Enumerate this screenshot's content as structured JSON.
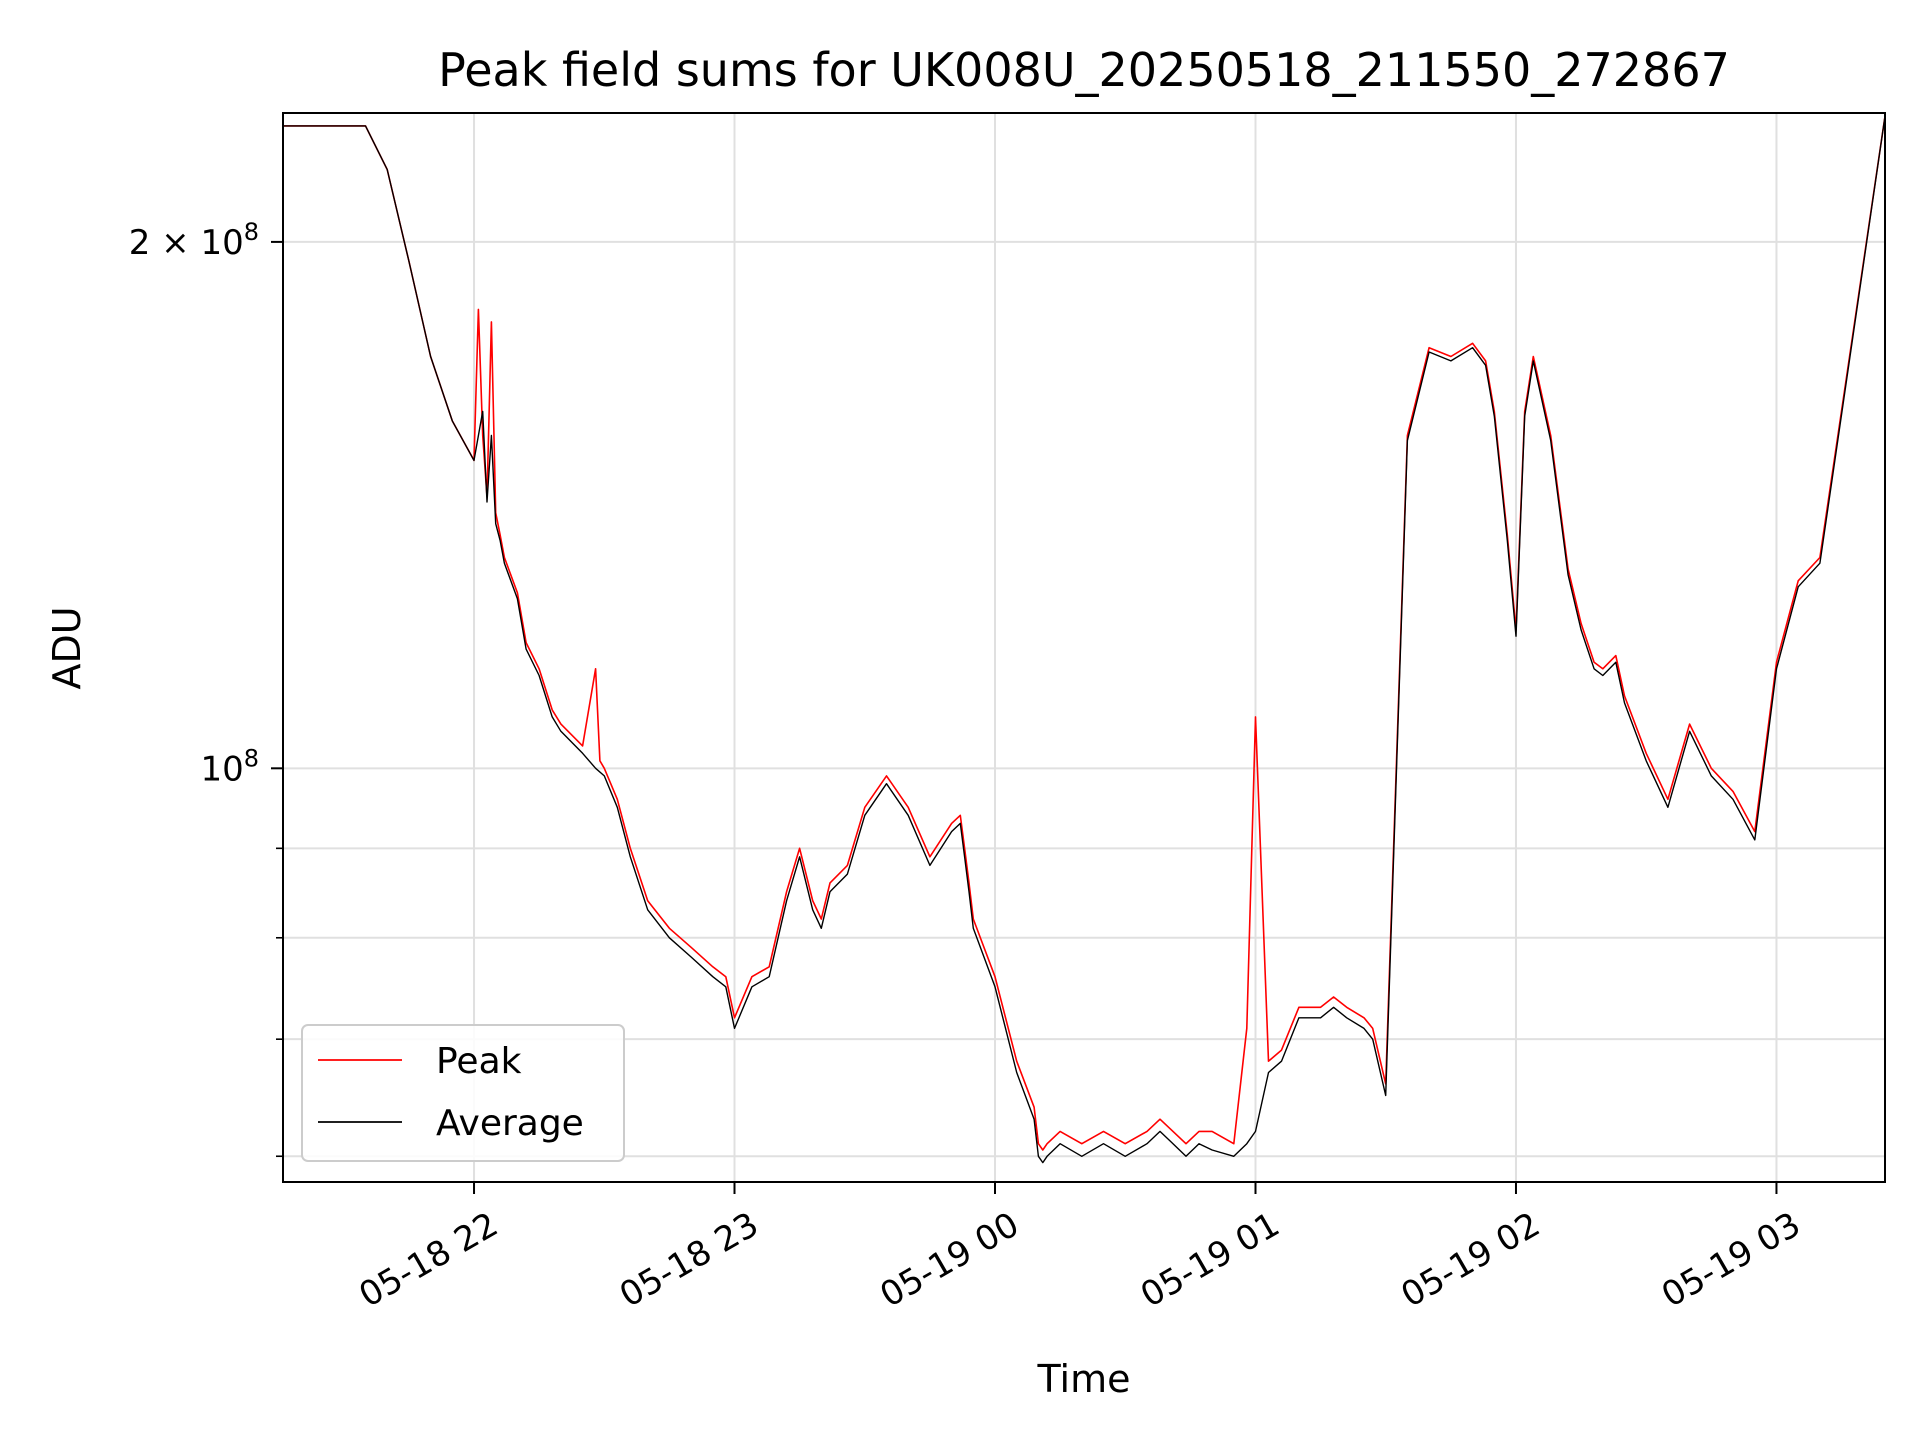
{
  "chart_data": {
    "type": "line",
    "title": "Peak field sums for UK008U_20250518_211550_272867",
    "xlabel": "Time",
    "ylabel": "ADU",
    "yscale": "log",
    "ylim": [
      58000000,
      237000000
    ],
    "xlim": [
      "2025-05-18 21:16",
      "2025-05-19 03:25"
    ],
    "grid": true,
    "legend_position": "lower-left",
    "x_ticks": [
      {
        "value": "2025-05-18 22:00",
        "label": "05-18 22"
      },
      {
        "value": "2025-05-18 23:00",
        "label": "05-18 23"
      },
      {
        "value": "2025-05-19 00:00",
        "label": "05-19 00"
      },
      {
        "value": "2025-05-19 01:00",
        "label": "05-19 01"
      },
      {
        "value": "2025-05-19 02:00",
        "label": "05-19 02"
      },
      {
        "value": "2025-05-19 03:00",
        "label": "05-19 03"
      }
    ],
    "y_ticks_major": [
      {
        "value": 100000000,
        "base": "10",
        "exp": "8",
        "mantissa": ""
      },
      {
        "value": 200000000,
        "base": "10",
        "exp": "8",
        "mantissa": "2 × "
      }
    ],
    "y_ticks_minor": [
      60000000,
      70000000,
      80000000,
      90000000
    ],
    "series": [
      {
        "name": "Peak",
        "color": "#ff0000",
        "x": [
          "2025-05-18 21:16",
          "2025-05-18 21:30",
          "2025-05-18 21:35",
          "2025-05-18 21:40",
          "2025-05-18 21:45",
          "2025-05-18 21:50",
          "2025-05-18 21:55",
          "2025-05-18 22:00",
          "2025-05-18 22:01",
          "2025-05-18 22:02",
          "2025-05-18 22:03",
          "2025-05-18 22:04",
          "2025-05-18 22:05",
          "2025-05-18 22:06",
          "2025-05-18 22:07",
          "2025-05-18 22:10",
          "2025-05-18 22:12",
          "2025-05-18 22:15",
          "2025-05-18 22:18",
          "2025-05-18 22:20",
          "2025-05-18 22:25",
          "2025-05-18 22:28",
          "2025-05-18 22:29",
          "2025-05-18 22:30",
          "2025-05-18 22:33",
          "2025-05-18 22:36",
          "2025-05-18 22:40",
          "2025-05-18 22:45",
          "2025-05-18 22:50",
          "2025-05-18 22:55",
          "2025-05-18 22:58",
          "2025-05-18 23:00",
          "2025-05-18 23:04",
          "2025-05-18 23:08",
          "2025-05-18 23:12",
          "2025-05-18 23:15",
          "2025-05-18 23:18",
          "2025-05-18 23:20",
          "2025-05-18 23:22",
          "2025-05-18 23:26",
          "2025-05-18 23:30",
          "2025-05-18 23:35",
          "2025-05-18 23:40",
          "2025-05-18 23:45",
          "2025-05-18 23:50",
          "2025-05-18 23:52",
          "2025-05-18 23:53",
          "2025-05-18 23:54",
          "2025-05-18 23:55",
          "2025-05-19 00:00",
          "2025-05-19 00:05",
          "2025-05-19 00:09",
          "2025-05-19 00:10",
          "2025-05-19 00:11",
          "2025-05-19 00:12",
          "2025-05-19 00:15",
          "2025-05-19 00:20",
          "2025-05-19 00:25",
          "2025-05-19 00:30",
          "2025-05-19 00:35",
          "2025-05-19 00:38",
          "2025-05-19 00:41",
          "2025-05-19 00:44",
          "2025-05-19 00:47",
          "2025-05-19 00:50",
          "2025-05-19 00:55",
          "2025-05-19 00:58",
          "2025-05-19 01:00",
          "2025-05-19 01:03",
          "2025-05-19 01:06",
          "2025-05-19 01:10",
          "2025-05-19 01:15",
          "2025-05-19 01:18",
          "2025-05-19 01:21",
          "2025-05-19 01:25",
          "2025-05-19 01:27",
          "2025-05-19 01:30",
          "2025-05-19 01:35",
          "2025-05-19 01:40",
          "2025-05-19 01:45",
          "2025-05-19 01:50",
          "2025-05-19 01:53",
          "2025-05-19 01:55",
          "2025-05-19 01:58",
          "2025-05-19 02:00",
          "2025-05-19 02:02",
          "2025-05-19 02:04",
          "2025-05-19 02:08",
          "2025-05-19 02:12",
          "2025-05-19 02:15",
          "2025-05-19 02:18",
          "2025-05-19 02:20",
          "2025-05-19 02:23",
          "2025-05-19 02:25",
          "2025-05-19 02:30",
          "2025-05-19 02:35",
          "2025-05-19 02:40",
          "2025-05-19 02:45",
          "2025-05-19 02:50",
          "2025-05-19 02:55",
          "2025-05-19 03:00",
          "2025-05-19 03:05",
          "2025-05-19 03:10",
          "2025-05-19 03:25"
        ],
        "y": [
          233000000,
          233000000,
          233000000,
          220000000,
          195000000,
          172000000,
          158000000,
          150000000,
          183000000,
          155000000,
          143000000,
          180000000,
          140000000,
          136000000,
          132000000,
          126000000,
          118000000,
          114000000,
          108000000,
          106000000,
          103000000,
          114000000,
          101000000,
          100000000,
          96000000,
          90000000,
          84000000,
          81000000,
          79000000,
          77000000,
          76000000,
          72000000,
          76000000,
          77000000,
          85000000,
          90000000,
          84000000,
          82000000,
          86000000,
          88000000,
          95000000,
          99000000,
          95000000,
          89000000,
          93000000,
          94000000,
          90000000,
          86000000,
          82000000,
          76000000,
          68000000,
          64000000,
          61000000,
          60500000,
          61000000,
          62000000,
          61000000,
          62000000,
          61000000,
          62000000,
          63000000,
          62000000,
          61000000,
          62000000,
          62000000,
          61000000,
          71000000,
          107000000,
          68000000,
          69000000,
          73000000,
          73000000,
          74000000,
          73000000,
          72000000,
          71000000,
          66000000,
          155000000,
          174000000,
          172000000,
          175000000,
          171000000,
          160000000,
          136000000,
          120000000,
          160000000,
          172000000,
          155000000,
          130000000,
          121000000,
          115000000,
          114000000,
          116000000,
          110000000,
          102000000,
          96000000,
          106000000,
          100000000,
          97000000,
          92000000,
          115000000,
          128000000,
          132000000,
          236000000
        ]
      },
      {
        "name": "Average",
        "color": "#000000",
        "x": [
          "2025-05-18 21:16",
          "2025-05-18 21:30",
          "2025-05-18 21:35",
          "2025-05-18 21:40",
          "2025-05-18 21:45",
          "2025-05-18 21:50",
          "2025-05-18 21:55",
          "2025-05-18 22:00",
          "2025-05-18 22:02",
          "2025-05-18 22:03",
          "2025-05-18 22:04",
          "2025-05-18 22:05",
          "2025-05-18 22:06",
          "2025-05-18 22:07",
          "2025-05-18 22:10",
          "2025-05-18 22:12",
          "2025-05-18 22:15",
          "2025-05-18 22:18",
          "2025-05-18 22:20",
          "2025-05-18 22:25",
          "2025-05-18 22:28",
          "2025-05-18 22:30",
          "2025-05-18 22:33",
          "2025-05-18 22:36",
          "2025-05-18 22:40",
          "2025-05-18 22:45",
          "2025-05-18 22:50",
          "2025-05-18 22:55",
          "2025-05-18 22:58",
          "2025-05-18 23:00",
          "2025-05-18 23:04",
          "2025-05-18 23:08",
          "2025-05-18 23:12",
          "2025-05-18 23:15",
          "2025-05-18 23:18",
          "2025-05-18 23:20",
          "2025-05-18 23:22",
          "2025-05-18 23:26",
          "2025-05-18 23:30",
          "2025-05-18 23:35",
          "2025-05-18 23:40",
          "2025-05-18 23:45",
          "2025-05-18 23:50",
          "2025-05-18 23:52",
          "2025-05-18 23:53",
          "2025-05-18 23:54",
          "2025-05-18 23:55",
          "2025-05-19 00:00",
          "2025-05-19 00:05",
          "2025-05-19 00:09",
          "2025-05-19 00:10",
          "2025-05-19 00:11",
          "2025-05-19 00:12",
          "2025-05-19 00:15",
          "2025-05-19 00:20",
          "2025-05-19 00:25",
          "2025-05-19 00:30",
          "2025-05-19 00:35",
          "2025-05-19 00:38",
          "2025-05-19 00:41",
          "2025-05-19 00:44",
          "2025-05-19 00:47",
          "2025-05-19 00:50",
          "2025-05-19 00:55",
          "2025-05-19 00:58",
          "2025-05-19 01:00",
          "2025-05-19 01:03",
          "2025-05-19 01:06",
          "2025-05-19 01:10",
          "2025-05-19 01:15",
          "2025-05-19 01:18",
          "2025-05-19 01:21",
          "2025-05-19 01:25",
          "2025-05-19 01:27",
          "2025-05-19 01:30",
          "2025-05-19 01:35",
          "2025-05-19 01:40",
          "2025-05-19 01:45",
          "2025-05-19 01:50",
          "2025-05-19 01:53",
          "2025-05-19 01:55",
          "2025-05-19 01:58",
          "2025-05-19 02:00",
          "2025-05-19 02:02",
          "2025-05-19 02:04",
          "2025-05-19 02:08",
          "2025-05-19 02:12",
          "2025-05-19 02:15",
          "2025-05-19 02:18",
          "2025-05-19 02:20",
          "2025-05-19 02:23",
          "2025-05-19 02:25",
          "2025-05-19 02:30",
          "2025-05-19 02:35",
          "2025-05-19 02:40",
          "2025-05-19 02:45",
          "2025-05-19 02:50",
          "2025-05-19 02:55",
          "2025-05-19 03:00",
          "2025-05-19 03:05",
          "2025-05-19 03:10",
          "2025-05-19 03:25"
        ],
        "y": [
          233000000,
          233000000,
          233000000,
          220000000,
          195000000,
          172000000,
          158000000,
          150000000,
          160000000,
          142000000,
          155000000,
          138000000,
          135000000,
          131000000,
          125000000,
          117000000,
          113000000,
          107000000,
          105000000,
          102000000,
          100000000,
          99000000,
          95000000,
          89000000,
          83000000,
          80000000,
          78000000,
          76000000,
          75000000,
          71000000,
          75000000,
          76000000,
          84000000,
          89000000,
          83000000,
          81000000,
          85000000,
          87000000,
          94000000,
          98000000,
          94000000,
          88000000,
          92000000,
          93000000,
          89000000,
          85000000,
          81000000,
          75000000,
          67000000,
          63000000,
          60000000,
          59500000,
          60000000,
          61000000,
          60000000,
          61000000,
          60000000,
          61000000,
          62000000,
          61000000,
          60000000,
          61000000,
          60500000,
          60000000,
          61000000,
          62000000,
          67000000,
          68000000,
          72000000,
          72000000,
          73000000,
          72000000,
          71000000,
          70000000,
          65000000,
          154000000,
          173000000,
          171000000,
          174000000,
          170000000,
          159000000,
          135000000,
          119000000,
          159000000,
          171000000,
          154000000,
          129000000,
          120000000,
          114000000,
          113000000,
          115000000,
          109000000,
          101000000,
          95000000,
          105000000,
          99000000,
          96000000,
          91000000,
          114000000,
          127000000,
          131000000,
          236000000
        ]
      }
    ]
  }
}
